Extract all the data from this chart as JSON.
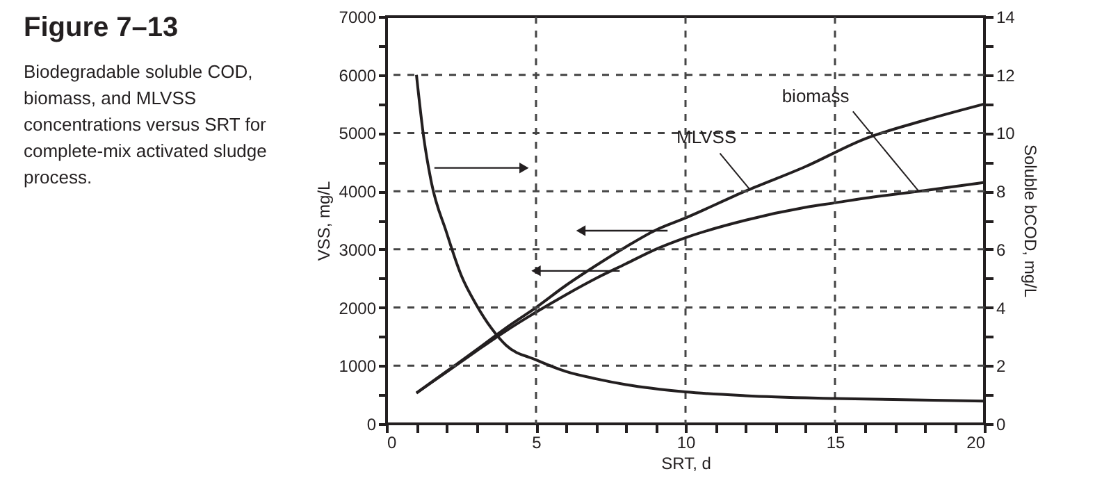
{
  "chart_data": {
    "type": "line",
    "title": "Figure 7–13",
    "subtitle": "Biodegradable soluble COD, biomass, and MLVSS concentrations versus SRT for complete-mix activated sludge process.",
    "xlabel": "SRT, d",
    "ylabel": "VSS, mg/L",
    "y2label": "Soluble bCOD, mg/L",
    "xlim": [
      0,
      20
    ],
    "xticks": [
      0,
      {
        "value": 1,
        "label": null
      },
      {
        "value": 2,
        "label": null
      },
      {
        "value": 3,
        "label": null
      },
      {
        "value": 4,
        "label": null
      },
      5,
      {
        "value": 6,
        "label": null
      },
      {
        "value": 7,
        "label": null
      },
      {
        "value": 8,
        "label": null
      },
      {
        "value": 9,
        "label": null
      },
      10,
      {
        "value": 11,
        "label": null
      },
      {
        "value": 12,
        "label": null
      },
      {
        "value": 13,
        "label": null
      },
      {
        "value": 14,
        "label": null
      },
      15,
      {
        "value": 16,
        "label": null
      },
      {
        "value": 17,
        "label": null
      },
      {
        "value": 18,
        "label": null
      },
      {
        "value": 19,
        "label": null
      },
      20
    ],
    "ylim": [
      0,
      7000
    ],
    "yticks": [
      0,
      {
        "value": 500,
        "label": null
      },
      1000,
      {
        "value": 1500,
        "label": null
      },
      2000,
      {
        "value": 2500,
        "label": null
      },
      3000,
      {
        "value": 3500,
        "label": null
      },
      4000,
      {
        "value": 4500,
        "label": null
      },
      5000,
      {
        "value": 5500,
        "label": null
      },
      6000,
      {
        "value": 6500,
        "label": null
      },
      7000
    ],
    "y2lim": [
      0,
      14
    ],
    "y2ticks": [
      0,
      {
        "value": 1,
        "label": null
      },
      2,
      {
        "value": 3,
        "label": null
      },
      4,
      {
        "value": 5,
        "label": null
      },
      6,
      {
        "value": 7,
        "label": null
      },
      8,
      {
        "value": 9,
        "label": null
      },
      10,
      {
        "value": 11,
        "label": null
      },
      12,
      {
        "value": 13,
        "label": null
      },
      14
    ],
    "grid": true,
    "marker": "none",
    "line_style": "solid",
    "series": [
      {
        "color": "#231f20",
        "x": [
          1,
          2,
          3,
          4,
          5,
          6,
          7,
          8,
          9,
          10,
          12,
          14,
          16,
          18,
          20
        ],
        "values": [
          530,
          900,
          1270,
          1650,
          2000,
          2380,
          2720,
          3040,
          3330,
          3540,
          4000,
          4420,
          4900,
          5220,
          5500
        ]
      },
      {
        "color": "#231f20",
        "x": [
          1,
          2,
          3,
          4,
          5,
          6,
          7,
          8,
          9,
          10,
          12,
          14,
          15,
          16,
          18,
          20
        ],
        "values": [
          530,
          890,
          1250,
          1600,
          1920,
          2220,
          2500,
          2750,
          3000,
          3200,
          3500,
          3720,
          3800,
          3880,
          4010,
          4150
        ]
      },
      {
        "color": "#231f20",
        "axis": "y2",
        "x": [
          1,
          1.25,
          1.5,
          2,
          2.5,
          3,
          3.5,
          4,
          5,
          6,
          7,
          8,
          10,
          12,
          15,
          20
        ],
        "values": [
          12,
          9.8,
          8.3,
          6.6,
          5.1,
          4.1,
          3.3,
          2.7,
          2.2,
          1.8,
          1.55,
          1.35,
          1.1,
          0.97,
          0.87,
          0.78
        ]
      }
    ],
    "annotations": [
      {
        "text": "MLVSS",
        "x": 12.15,
        "y": 4030
      },
      {
        "text": "biomass",
        "x": 17.8,
        "y": 4000
      }
    ]
  }
}
